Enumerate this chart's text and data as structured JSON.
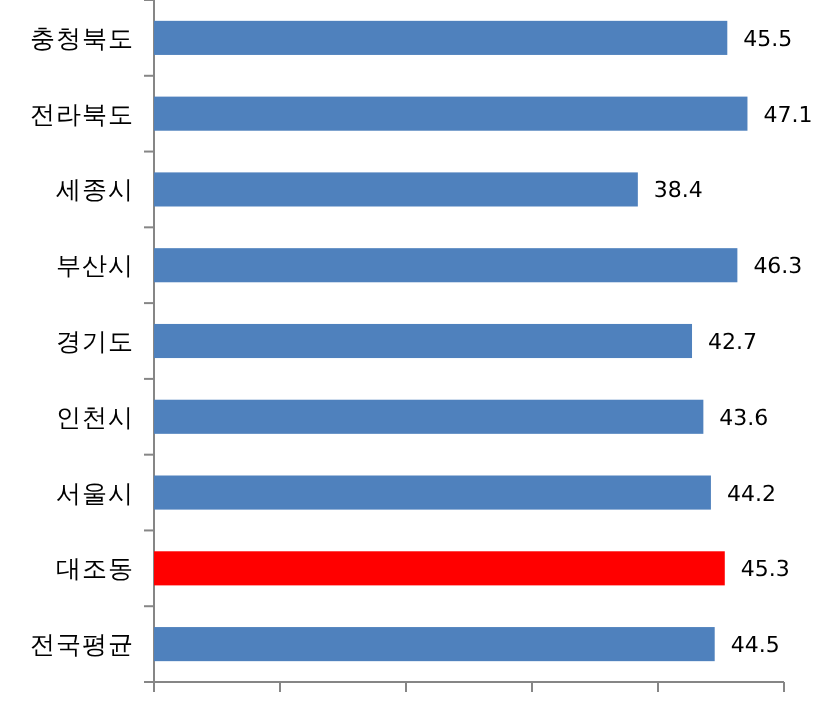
{
  "chart_data": {
    "type": "bar",
    "orientation": "horizontal",
    "categories": [
      "충청북도",
      "전라북도",
      "세종시",
      "부산시",
      "경기도",
      "인천시",
      "서울시",
      "대조동",
      "전국평균"
    ],
    "values": [
      45.5,
      47.1,
      38.4,
      46.3,
      42.7,
      43.6,
      44.2,
      45.3,
      44.5
    ],
    "colors": [
      "#4f81bd",
      "#4f81bd",
      "#4f81bd",
      "#4f81bd",
      "#4f81bd",
      "#4f81bd",
      "#4f81bd",
      "#ff0000",
      "#4f81bd"
    ],
    "data_labels": true,
    "xlim": [
      0,
      50
    ],
    "xticks": [
      {
        "value": 0,
        "label": null
      },
      {
        "value": 10,
        "label": null
      },
      {
        "value": 20,
        "label": null
      },
      {
        "value": 30,
        "label": null
      },
      {
        "value": 40,
        "label": null
      },
      {
        "value": 50,
        "label": null
      }
    ],
    "tick_labels": "y",
    "grid": false
  }
}
